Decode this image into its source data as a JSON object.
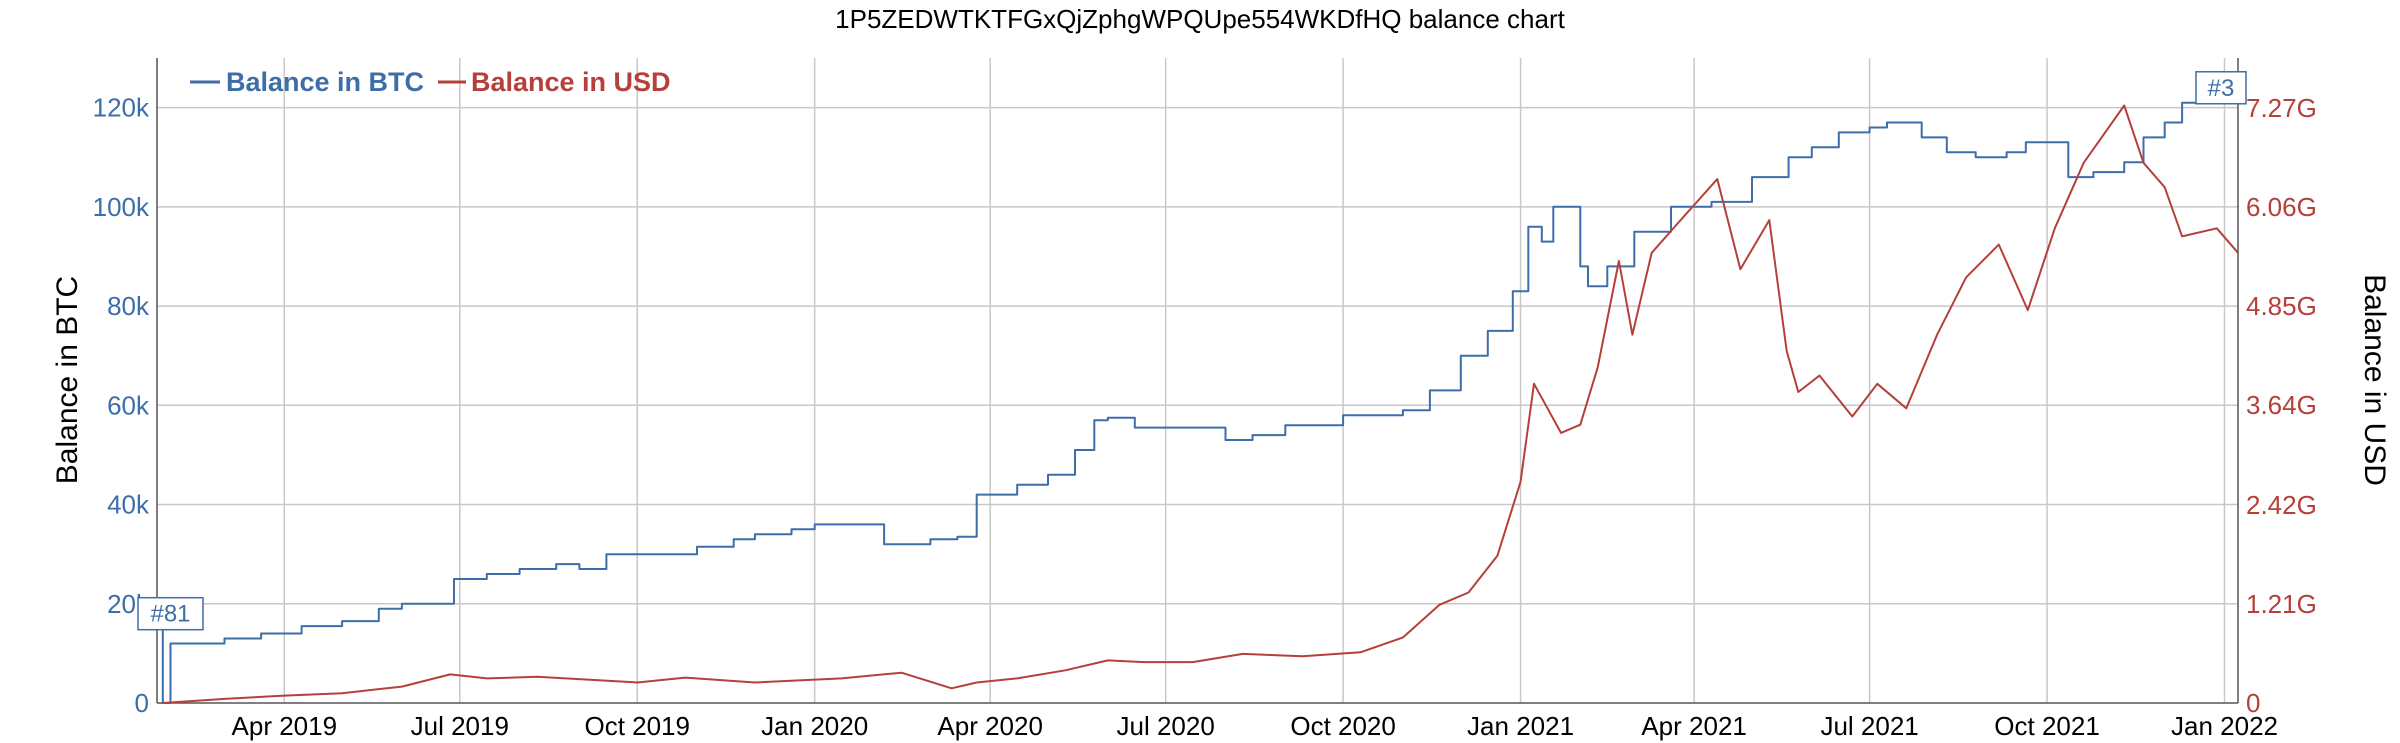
{
  "chart_data": {
    "type": "line",
    "title": "1P5ZEDWTKTFGxQjZphgWPQUpe554WKDfHQ balance chart",
    "ylabel_left": "Balance in BTC",
    "ylabel_right": "Balance in USD",
    "legend_placement": "top-left",
    "grid": true,
    "x_range": [
      "2019-01-25",
      "2022-01-08"
    ],
    "x_ticks": [
      {
        "date": "2019-04-01",
        "label": "Apr 2019"
      },
      {
        "date": "2019-07-01",
        "label": "Jul 2019"
      },
      {
        "date": "2019-10-01",
        "label": "Oct 2019"
      },
      {
        "date": "2020-01-01",
        "label": "Jan 2020"
      },
      {
        "date": "2020-04-01",
        "label": "Apr 2020"
      },
      {
        "date": "2020-07-01",
        "label": "Jul 2020"
      },
      {
        "date": "2020-10-01",
        "label": "Oct 2020"
      },
      {
        "date": "2021-01-01",
        "label": "Jan 2021"
      },
      {
        "date": "2021-04-01",
        "label": "Apr 2021"
      },
      {
        "date": "2021-07-01",
        "label": "Jul 2021"
      },
      {
        "date": "2021-10-01",
        "label": "Oct 2021"
      },
      {
        "date": "2022-01-01",
        "label": "Jan 2022"
      }
    ],
    "y_left": {
      "range": [
        0,
        130000
      ],
      "ticks": [
        {
          "value": 0,
          "label": "0"
        },
        {
          "value": 20000,
          "label": "20k"
        },
        {
          "value": 40000,
          "label": "40k"
        },
        {
          "value": 60000,
          "label": "60k"
        },
        {
          "value": 80000,
          "label": "80k"
        },
        {
          "value": 100000,
          "label": "100k"
        },
        {
          "value": 120000,
          "label": "120k"
        }
      ]
    },
    "y_right": {
      "range": [
        0,
        7.88
      ],
      "unit": "G",
      "ticks": [
        {
          "value": 0,
          "label": "0"
        },
        {
          "value": 1.21,
          "label": "1.21G"
        },
        {
          "value": 2.42,
          "label": "2.42G"
        },
        {
          "value": 3.64,
          "label": "3.64G"
        },
        {
          "value": 4.85,
          "label": "4.85G"
        },
        {
          "value": 6.06,
          "label": "6.06G"
        },
        {
          "value": 7.27,
          "label": "7.27G"
        }
      ]
    },
    "series": [
      {
        "name": "Balance in BTC",
        "color": "#3d6ea8",
        "axis": "left",
        "step": true,
        "points": [
          [
            "2019-01-25",
            18000
          ],
          [
            "2019-01-28",
            0
          ],
          [
            "2019-02-01",
            12000
          ],
          [
            "2019-03-01",
            13000
          ],
          [
            "2019-03-20",
            14000
          ],
          [
            "2019-04-10",
            15500
          ],
          [
            "2019-05-01",
            16500
          ],
          [
            "2019-05-20",
            19000
          ],
          [
            "2019-06-01",
            20000
          ],
          [
            "2019-06-28",
            25000
          ],
          [
            "2019-07-15",
            26000
          ],
          [
            "2019-08-01",
            27000
          ],
          [
            "2019-08-20",
            28000
          ],
          [
            "2019-09-01",
            27000
          ],
          [
            "2019-09-15",
            30000
          ],
          [
            "2019-10-01",
            30000
          ],
          [
            "2019-11-01",
            31500
          ],
          [
            "2019-11-20",
            33000
          ],
          [
            "2019-12-01",
            34000
          ],
          [
            "2019-12-20",
            35000
          ],
          [
            "2020-01-01",
            36000
          ],
          [
            "2020-02-01",
            36000
          ],
          [
            "2020-02-06",
            32000
          ],
          [
            "2020-03-01",
            33000
          ],
          [
            "2020-03-15",
            33500
          ],
          [
            "2020-03-25",
            42000
          ],
          [
            "2020-04-15",
            44000
          ],
          [
            "2020-05-01",
            46000
          ],
          [
            "2020-05-15",
            51000
          ],
          [
            "2020-05-25",
            57000
          ],
          [
            "2020-06-01",
            57500
          ],
          [
            "2020-06-15",
            55500
          ],
          [
            "2020-07-15",
            55500
          ],
          [
            "2020-08-01",
            53000
          ],
          [
            "2020-08-15",
            54000
          ],
          [
            "2020-09-01",
            56000
          ],
          [
            "2020-10-01",
            58000
          ],
          [
            "2020-10-20",
            58000
          ],
          [
            "2020-11-01",
            59000
          ],
          [
            "2020-11-15",
            63000
          ],
          [
            "2020-12-01",
            70000
          ],
          [
            "2020-12-15",
            75000
          ],
          [
            "2020-12-28",
            83000
          ],
          [
            "2021-01-05",
            96000
          ],
          [
            "2021-01-12",
            93000
          ],
          [
            "2021-01-18",
            100000
          ],
          [
            "2021-01-25",
            100000
          ],
          [
            "2021-02-01",
            88000
          ],
          [
            "2021-02-05",
            84000
          ],
          [
            "2021-02-15",
            88000
          ],
          [
            "2021-03-01",
            95000
          ],
          [
            "2021-03-20",
            100000
          ],
          [
            "2021-04-10",
            101000
          ],
          [
            "2021-05-01",
            106000
          ],
          [
            "2021-05-20",
            110000
          ],
          [
            "2021-06-01",
            112000
          ],
          [
            "2021-06-15",
            115000
          ],
          [
            "2021-07-01",
            116000
          ],
          [
            "2021-07-10",
            117000
          ],
          [
            "2021-07-28",
            114000
          ],
          [
            "2021-08-10",
            111000
          ],
          [
            "2021-08-25",
            110000
          ],
          [
            "2021-09-10",
            111000
          ],
          [
            "2021-09-20",
            113000
          ],
          [
            "2021-10-05",
            113000
          ],
          [
            "2021-10-12",
            106000
          ],
          [
            "2021-10-25",
            107000
          ],
          [
            "2021-11-10",
            109000
          ],
          [
            "2021-11-20",
            114000
          ],
          [
            "2021-12-01",
            117000
          ],
          [
            "2021-12-10",
            121000
          ],
          [
            "2021-12-25",
            122000
          ],
          [
            "2022-01-03",
            124000
          ]
        ]
      },
      {
        "name": "Balance in USD",
        "color": "#b5403a",
        "axis": "right",
        "step": false,
        "points": [
          [
            "2019-01-28",
            0.0
          ],
          [
            "2019-03-01",
            0.05
          ],
          [
            "2019-04-01",
            0.09
          ],
          [
            "2019-05-01",
            0.12
          ],
          [
            "2019-06-01",
            0.2
          ],
          [
            "2019-06-26",
            0.35
          ],
          [
            "2019-07-15",
            0.3
          ],
          [
            "2019-08-10",
            0.32
          ],
          [
            "2019-09-10",
            0.28
          ],
          [
            "2019-10-01",
            0.25
          ],
          [
            "2019-10-26",
            0.31
          ],
          [
            "2019-12-01",
            0.25
          ],
          [
            "2020-01-15",
            0.3
          ],
          [
            "2020-02-15",
            0.37
          ],
          [
            "2020-03-12",
            0.18
          ],
          [
            "2020-03-25",
            0.25
          ],
          [
            "2020-04-15",
            0.3
          ],
          [
            "2020-05-10",
            0.4
          ],
          [
            "2020-06-01",
            0.52
          ],
          [
            "2020-06-20",
            0.5
          ],
          [
            "2020-07-15",
            0.5
          ],
          [
            "2020-08-10",
            0.6
          ],
          [
            "2020-09-10",
            0.57
          ],
          [
            "2020-10-10",
            0.62
          ],
          [
            "2020-11-01",
            0.8
          ],
          [
            "2020-11-20",
            1.2
          ],
          [
            "2020-12-05",
            1.35
          ],
          [
            "2020-12-20",
            1.8
          ],
          [
            "2021-01-01",
            2.7
          ],
          [
            "2021-01-08",
            3.9
          ],
          [
            "2021-01-15",
            3.6
          ],
          [
            "2021-01-22",
            3.3
          ],
          [
            "2021-02-01",
            3.4
          ],
          [
            "2021-02-10",
            4.1
          ],
          [
            "2021-02-21",
            5.4
          ],
          [
            "2021-02-28",
            4.5
          ],
          [
            "2021-03-10",
            5.5
          ],
          [
            "2021-03-25",
            5.9
          ],
          [
            "2021-04-13",
            6.4
          ],
          [
            "2021-04-25",
            5.3
          ],
          [
            "2021-05-10",
            5.9
          ],
          [
            "2021-05-19",
            4.3
          ],
          [
            "2021-05-25",
            3.8
          ],
          [
            "2021-06-05",
            4.0
          ],
          [
            "2021-06-22",
            3.5
          ],
          [
            "2021-07-05",
            3.9
          ],
          [
            "2021-07-20",
            3.6
          ],
          [
            "2021-08-05",
            4.5
          ],
          [
            "2021-08-20",
            5.2
          ],
          [
            "2021-09-06",
            5.6
          ],
          [
            "2021-09-21",
            4.8
          ],
          [
            "2021-10-05",
            5.8
          ],
          [
            "2021-10-20",
            6.6
          ],
          [
            "2021-11-10",
            7.3
          ],
          [
            "2021-11-20",
            6.6
          ],
          [
            "2021-12-01",
            6.3
          ],
          [
            "2021-12-10",
            5.7
          ],
          [
            "2021-12-28",
            5.8
          ],
          [
            "2022-01-08",
            5.5
          ]
        ]
      }
    ],
    "annotations": [
      {
        "label": "#81",
        "series": "Balance in BTC",
        "date": "2019-01-25",
        "value": 18000
      },
      {
        "label": "#3",
        "series": "Balance in BTC",
        "date": "2022-01-03",
        "value": 124000
      }
    ]
  }
}
